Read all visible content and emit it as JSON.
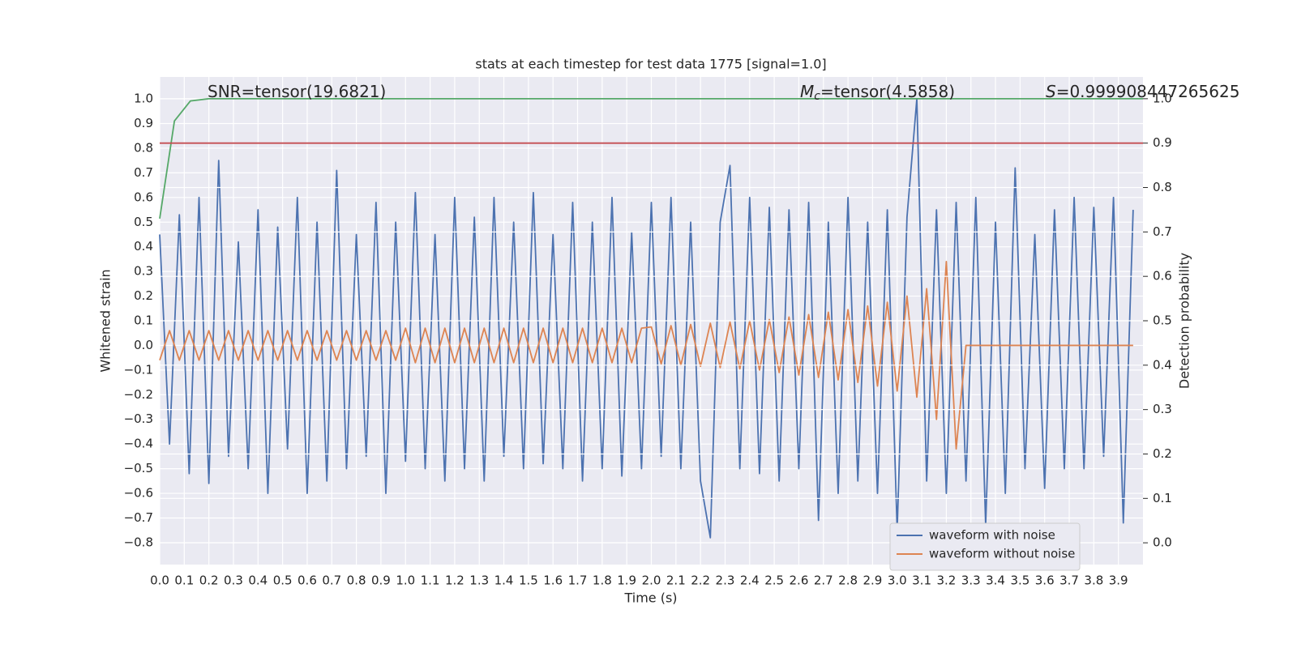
{
  "chart_data": {
    "type": "line",
    "title": "stats at each timestep for test data 1775 [signal=1.0]",
    "xlabel": "Time (s)",
    "ylabel": "Whitened strain",
    "y2label": "Detection probability",
    "annotations": [
      {
        "text": "SNR=tensor(19.6821)"
      },
      {
        "symbol": "M",
        "subscript": "c",
        "text": "=tensor(4.5858)"
      },
      {
        "symbol": "S",
        "text": "=0.999908447265625"
      }
    ],
    "xlim": [
      0,
      4.0
    ],
    "ylim": [
      -0.889,
      1.089
    ],
    "y2lim": [
      -0.049,
      1.049
    ],
    "grid": true,
    "legend": "lower right",
    "xticks": [
      {
        "value": 0,
        "label": "0.0"
      },
      {
        "value": 0.1,
        "label": "0.1"
      },
      {
        "value": 0.2,
        "label": "0.2"
      },
      {
        "value": 0.3,
        "label": "0.3"
      },
      {
        "value": 0.4,
        "label": "0.4"
      },
      {
        "value": 0.5,
        "label": "0.5"
      },
      {
        "value": 0.6,
        "label": "0.6"
      },
      {
        "value": 0.7,
        "label": "0.7"
      },
      {
        "value": 0.8,
        "label": "0.8"
      },
      {
        "value": 0.9,
        "label": "0.9"
      },
      {
        "value": 1.0,
        "label": "1.0"
      },
      {
        "value": 1.1,
        "label": "1.1"
      },
      {
        "value": 1.2,
        "label": "1.2"
      },
      {
        "value": 1.3,
        "label": "1.3"
      },
      {
        "value": 1.4,
        "label": "1.4"
      },
      {
        "value": 1.5,
        "label": "1.5"
      },
      {
        "value": 1.6,
        "label": "1.6"
      },
      {
        "value": 1.7,
        "label": "1.7"
      },
      {
        "value": 1.8,
        "label": "1.8"
      },
      {
        "value": 1.9,
        "label": "1.9"
      },
      {
        "value": 2.0,
        "label": "2.0"
      },
      {
        "value": 2.1,
        "label": "2.1"
      },
      {
        "value": 2.2,
        "label": "2.2"
      },
      {
        "value": 2.3,
        "label": "2.3"
      },
      {
        "value": 2.4,
        "label": "2.4"
      },
      {
        "value": 2.5,
        "label": "2.5"
      },
      {
        "value": 2.6,
        "label": "2.6"
      },
      {
        "value": 2.7,
        "label": "2.7"
      },
      {
        "value": 2.8,
        "label": "2.8"
      },
      {
        "value": 2.9,
        "label": "2.9"
      },
      {
        "value": 3.0,
        "label": "3.0"
      },
      {
        "value": 3.1,
        "label": "3.1"
      },
      {
        "value": 3.2,
        "label": "3.2"
      },
      {
        "value": 3.3,
        "label": "3.3"
      },
      {
        "value": 3.4,
        "label": "3.4"
      },
      {
        "value": 3.5,
        "label": "3.5"
      },
      {
        "value": 3.6,
        "label": "3.6"
      },
      {
        "value": 3.7,
        "label": "3.7"
      },
      {
        "value": 3.8,
        "label": "3.8"
      },
      {
        "value": 3.9,
        "label": "3.9"
      }
    ],
    "yticks": [
      {
        "value": -0.8,
        "label": "−0.8"
      },
      {
        "value": -0.7,
        "label": "−0.7"
      },
      {
        "value": -0.6,
        "label": "−0.6"
      },
      {
        "value": -0.5,
        "label": "−0.5"
      },
      {
        "value": -0.4,
        "label": "−0.4"
      },
      {
        "value": -0.3,
        "label": "−0.3"
      },
      {
        "value": -0.2,
        "label": "−0.2"
      },
      {
        "value": -0.1,
        "label": "−0.1"
      },
      {
        "value": 0,
        "label": "0.0"
      },
      {
        "value": 0.1,
        "label": "0.1"
      },
      {
        "value": 0.2,
        "label": "0.2"
      },
      {
        "value": 0.3,
        "label": "0.3"
      },
      {
        "value": 0.4,
        "label": "0.4"
      },
      {
        "value": 0.5,
        "label": "0.5"
      },
      {
        "value": 0.6,
        "label": "0.6"
      },
      {
        "value": 0.7,
        "label": "0.7"
      },
      {
        "value": 0.8,
        "label": "0.8"
      },
      {
        "value": 0.9,
        "label": "0.9"
      },
      {
        "value": 1.0,
        "label": "1.0"
      }
    ],
    "y2ticks": [
      {
        "value": 0,
        "label": "0.0"
      },
      {
        "value": 0.1,
        "label": "0.1"
      },
      {
        "value": 0.2,
        "label": "0.2"
      },
      {
        "value": 0.3,
        "label": "0.3"
      },
      {
        "value": 0.4,
        "label": "0.4"
      },
      {
        "value": 0.5,
        "label": "0.5"
      },
      {
        "value": 0.6,
        "label": "0.6"
      },
      {
        "value": 0.7,
        "label": "0.7"
      },
      {
        "value": 0.8,
        "label": "0.8"
      },
      {
        "value": 0.9,
        "label": "0.9"
      },
      {
        "value": 1.0,
        "label": "1.0"
      }
    ],
    "x": [
      0,
      0.04,
      0.08,
      0.12,
      0.16,
      0.2,
      0.24,
      0.28,
      0.32,
      0.36,
      0.4,
      0.44,
      0.48,
      0.52,
      0.56,
      0.6,
      0.64,
      0.68,
      0.72,
      0.76,
      0.8,
      0.84,
      0.88,
      0.92,
      0.96,
      1.0,
      1.04,
      1.08,
      1.12,
      1.16,
      1.2,
      1.24,
      1.28,
      1.32,
      1.36,
      1.4,
      1.44,
      1.48,
      1.52,
      1.56,
      1.6,
      1.64,
      1.68,
      1.72,
      1.76,
      1.8,
      1.84,
      1.88,
      1.92,
      1.96,
      2.0,
      2.04,
      2.08,
      2.12,
      2.16,
      2.2,
      2.24,
      2.28,
      2.32,
      2.36,
      2.4,
      2.44,
      2.48,
      2.52,
      2.56,
      2.6,
      2.64,
      2.68,
      2.72,
      2.76,
      2.8,
      2.84,
      2.88,
      2.92,
      2.96,
      3.0,
      3.04,
      3.08,
      3.12,
      3.16,
      3.2,
      3.24,
      3.28,
      3.32,
      3.36,
      3.4,
      3.44,
      3.48,
      3.52,
      3.56,
      3.6,
      3.64,
      3.68,
      3.72,
      3.76,
      3.8,
      3.84,
      3.88,
      3.92,
      3.96
    ],
    "series": [
      {
        "name": "waveform with noise",
        "color": "#4c72b0",
        "axis": "y",
        "values": [
          0.45,
          -0.4,
          0.53,
          -0.52,
          0.6,
          -0.56,
          0.75,
          -0.45,
          0.42,
          -0.5,
          0.55,
          -0.6,
          0.48,
          -0.42,
          0.6,
          -0.6,
          0.5,
          -0.55,
          0.71,
          -0.5,
          0.45,
          -0.45,
          0.58,
          -0.6,
          0.5,
          -0.47,
          0.62,
          -0.5,
          0.45,
          -0.55,
          0.6,
          -0.5,
          0.52,
          -0.55,
          0.6,
          -0.45,
          0.5,
          -0.5,
          0.62,
          -0.48,
          0.45,
          -0.5,
          0.58,
          -0.55,
          0.5,
          -0.5,
          0.6,
          -0.53,
          0.46,
          -0.5,
          0.58,
          -0.45,
          0.6,
          -0.5,
          0.5,
          -0.55,
          -0.78,
          0.5,
          0.73,
          -0.5,
          0.6,
          -0.52,
          0.56,
          -0.55,
          0.55,
          -0.5,
          0.58,
          -0.71,
          0.5,
          -0.6,
          0.6,
          -0.55,
          0.5,
          -0.6,
          0.55,
          -0.75,
          0.52,
          1.0,
          -0.55,
          0.55,
          -0.6,
          0.58,
          -0.55,
          0.6,
          -0.73,
          0.5,
          -0.6,
          0.72,
          -0.5,
          0.45,
          -0.58,
          0.55,
          -0.5,
          0.6,
          -0.5,
          0.56,
          -0.45,
          0.6,
          -0.72,
          0.55
        ]
      },
      {
        "name": "waveform without noise",
        "color": "#dd8452",
        "axis": "y",
        "values": [
          -0.06,
          0.06,
          -0.06,
          0.06,
          -0.06,
          0.06,
          -0.06,
          0.06,
          -0.06,
          0.06,
          -0.06,
          0.06,
          -0.06,
          0.06,
          -0.06,
          0.06,
          -0.06,
          0.06,
          -0.06,
          0.06,
          -0.06,
          0.06,
          -0.06,
          0.06,
          -0.06,
          0.07,
          -0.07,
          0.07,
          -0.07,
          0.07,
          -0.07,
          0.07,
          -0.07,
          0.07,
          -0.07,
          0.07,
          -0.07,
          0.07,
          -0.07,
          0.07,
          -0.07,
          0.07,
          -0.07,
          0.07,
          -0.07,
          0.07,
          -0.07,
          0.07,
          -0.07,
          0.07,
          0.075,
          -0.075,
          0.08,
          -0.08,
          0.085,
          -0.085,
          0.09,
          -0.09,
          0.095,
          -0.095,
          0.1,
          -0.1,
          0.105,
          -0.11,
          0.115,
          -0.12,
          0.125,
          -0.13,
          0.135,
          -0.14,
          0.145,
          -0.15,
          0.16,
          -0.165,
          0.175,
          -0.185,
          0.2,
          -0.21,
          0.23,
          -0.3,
          0.34,
          -0.42,
          0,
          0,
          0,
          0,
          0,
          0,
          0,
          0,
          0,
          0,
          0,
          0,
          0,
          0,
          0,
          0,
          0,
          0
        ]
      },
      {
        "color": "#55a868",
        "axis": "y2",
        "x": [
          0,
          0.06,
          0.125,
          0.2,
          4.0
        ],
        "values": [
          0.73,
          0.95,
          0.995,
          1.0,
          1.0
        ]
      },
      {
        "color": "#c44e52",
        "axis": "y2",
        "x": [
          0,
          4.0
        ],
        "values": [
          0.9,
          0.9
        ]
      }
    ]
  }
}
